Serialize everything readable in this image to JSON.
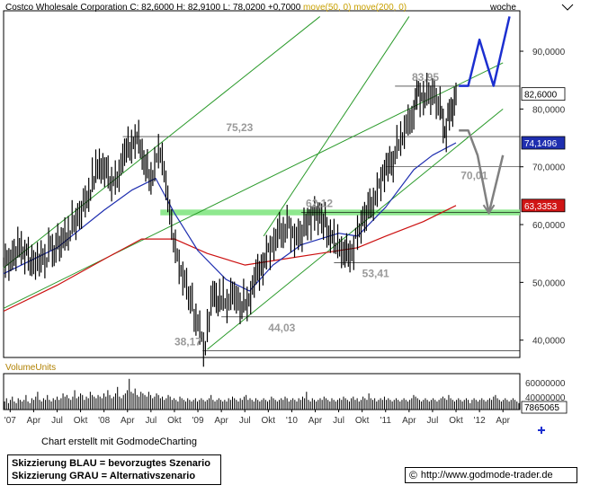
{
  "header": {
    "name": "Costco Wholesale Corporation",
    "ohlc": "C: 82,6000 H: 82,9100 L: 78,0200 +0,7000",
    "ma50": "move(50, 0)",
    "ma200": "move(200, 0)",
    "interval": "woche"
  },
  "volume_label": "VolumeUnits",
  "footer": {
    "credit": "Chart erstellt mit GodmodeCharting",
    "legend_blue": "Skizzierung BLAU = bevorzugtes Szenario",
    "legend_gray": "Skizzierung GRAU = Alternativszenario",
    "url_symbol": "©",
    "url": "http://www.godmode-trader.de"
  },
  "colors": {
    "price": "#000000",
    "ma50": "#1f2fb0",
    "ma200": "#cc1010",
    "channel": "#2a9a2a",
    "zone": "#8fe88f",
    "blue_scenario": "#1c2fd0",
    "gray_scenario": "#808080",
    "last_price_box": "#ffffff",
    "ma50_box": "#1f2fb0",
    "ma200_box": "#d01515"
  },
  "chart_data": {
    "type": "line",
    "title": "Costco Wholesale Corporation",
    "interval": "woche",
    "ylim": [
      37,
      97
    ],
    "y_ticks": [
      "90,0000",
      "80,0000",
      "70,0000",
      "60,0000",
      "50,0000",
      "40,0000"
    ],
    "y_tick_values": [
      90,
      80,
      70,
      60,
      50,
      40
    ],
    "x_ticks": [
      "'07",
      "Apr",
      "Jul",
      "Okt",
      "'08",
      "Apr",
      "Jul",
      "Okt",
      "'09",
      "Apr",
      "Jul",
      "Okt",
      "'10",
      "Apr",
      "Jul",
      "Okt",
      "'11",
      "Apr",
      "Jul",
      "Okt",
      "'12",
      "Apr"
    ],
    "x_tick_values": [
      2007.0,
      2007.25,
      2007.5,
      2007.75,
      2008.0,
      2008.25,
      2008.5,
      2008.75,
      2009.0,
      2009.25,
      2009.5,
      2009.75,
      2010.0,
      2010.25,
      2010.5,
      2010.75,
      2011.0,
      2011.25,
      2011.5,
      2011.75,
      2012.0,
      2012.25
    ],
    "xlim": [
      2006.93,
      2012.43
    ],
    "price_points": [
      [
        2006.93,
        53.5
      ],
      [
        2007.1,
        56
      ],
      [
        2007.25,
        53.5
      ],
      [
        2007.45,
        55.5
      ],
      [
        2007.62,
        58.5
      ],
      [
        2007.8,
        64
      ],
      [
        2007.95,
        70.5
      ],
      [
        2008.1,
        67.5
      ],
      [
        2008.2,
        71.5
      ],
      [
        2008.35,
        75
      ],
      [
        2008.5,
        68
      ],
      [
        2008.6,
        72
      ],
      [
        2008.72,
        60
      ],
      [
        2008.82,
        52
      ],
      [
        2008.92,
        47
      ],
      [
        2009.0,
        43
      ],
      [
        2009.08,
        38.6
      ],
      [
        2009.16,
        48
      ],
      [
        2009.25,
        46.5
      ],
      [
        2009.35,
        48
      ],
      [
        2009.45,
        45.5
      ],
      [
        2009.6,
        50
      ],
      [
        2009.75,
        56
      ],
      [
        2009.85,
        58.5
      ],
      [
        2009.95,
        60.5
      ],
      [
        2010.05,
        58
      ],
      [
        2010.15,
        60
      ],
      [
        2010.3,
        62
      ],
      [
        2010.45,
        58
      ],
      [
        2010.55,
        55
      ],
      [
        2010.62,
        54.5
      ],
      [
        2010.72,
        59
      ],
      [
        2010.85,
        63
      ],
      [
        2010.95,
        67
      ],
      [
        2011.1,
        72
      ],
      [
        2011.2,
        76
      ],
      [
        2011.3,
        79
      ],
      [
        2011.35,
        83.5
      ],
      [
        2011.42,
        81.5
      ],
      [
        2011.5,
        83
      ],
      [
        2011.58,
        81
      ],
      [
        2011.63,
        76
      ],
      [
        2011.68,
        79
      ],
      [
        2011.75,
        82.6
      ]
    ],
    "ma50_points": [
      [
        2006.93,
        51.5
      ],
      [
        2007.5,
        56
      ],
      [
        2008.0,
        62.5
      ],
      [
        2008.3,
        66
      ],
      [
        2008.55,
        68
      ],
      [
        2008.75,
        62
      ],
      [
        2009.0,
        55.5
      ],
      [
        2009.3,
        50.5
      ],
      [
        2009.55,
        48.5
      ],
      [
        2009.8,
        53
      ],
      [
        2010.1,
        56.5
      ],
      [
        2010.5,
        58.5
      ],
      [
        2010.7,
        58
      ],
      [
        2011.0,
        63
      ],
      [
        2011.3,
        69.5
      ],
      [
        2011.5,
        72
      ],
      [
        2011.75,
        74.15
      ]
    ],
    "ma200_points": [
      [
        2006.93,
        45
      ],
      [
        2007.5,
        49.5
      ],
      [
        2008.0,
        54
      ],
      [
        2008.4,
        57.5
      ],
      [
        2008.75,
        57.5
      ],
      [
        2009.1,
        55
      ],
      [
        2009.5,
        53
      ],
      [
        2009.9,
        54
      ],
      [
        2010.3,
        55
      ],
      [
        2010.7,
        56
      ],
      [
        2011.0,
        58
      ],
      [
        2011.4,
        60.5
      ],
      [
        2011.75,
        63.3
      ]
    ],
    "horizontal_lines": [
      {
        "label": "83,95",
        "value": 83.95,
        "x_start": 2011.1
      },
      {
        "label": "75,23",
        "value": 75.23,
        "x_start": 2008.2
      },
      {
        "label": "70,01",
        "value": 70.01,
        "x_start": 2011.0
      },
      {
        "label": "62,12",
        "value": 62.12,
        "x_start": 2010.1
      },
      {
        "label": "53,41",
        "value": 53.41,
        "x_start": 2010.45
      },
      {
        "label": "44,03",
        "value": 44.03,
        "x_start": 2009.25
      },
      {
        "label": "38,17",
        "value": 38.17,
        "x_start": 2009.05
      }
    ],
    "support_zone": {
      "from": 61.6,
      "to": 62.6,
      "x_start": 2008.6
    },
    "channel_lines": [
      {
        "from": [
          2006.93,
          52.5
        ],
        "to": [
          2010.3,
          96
        ]
      },
      {
        "from": [
          2006.93,
          45.5
        ],
        "to": [
          2012.25,
          88
        ]
      },
      {
        "from": [
          2009.1,
          38.4
        ],
        "to": [
          2012.25,
          80
        ]
      },
      {
        "from": [
          2009.7,
          58
        ],
        "to": [
          2011.25,
          96
        ]
      }
    ],
    "blue_scenario": [
      [
        2011.78,
        84
      ],
      [
        2011.88,
        84
      ],
      [
        2012.0,
        92
      ],
      [
        2012.15,
        84
      ],
      [
        2012.32,
        96
      ]
    ],
    "gray_scenario": [
      [
        2011.78,
        76.3
      ],
      [
        2011.88,
        76.3
      ],
      [
        2011.98,
        72
      ],
      [
        2012.1,
        62
      ],
      [
        2012.25,
        72
      ]
    ],
    "price_boxes": [
      {
        "label": "82,6000",
        "value": 82.6,
        "style": "last"
      },
      {
        "label": "74,1496",
        "value": 74.15,
        "style": "ma50"
      },
      {
        "label": "63,3353",
        "value": 63.3,
        "style": "ma200"
      }
    ],
    "volume": {
      "ticks": [
        "60000000",
        "40000000"
      ],
      "last_label": "7865065",
      "bars": [
        0.25,
        0.35,
        0.2,
        0.3,
        0.4,
        0.25,
        0.2,
        0.35,
        0.3,
        0.25,
        0.3,
        0.45,
        0.25,
        0.2,
        0.35,
        0.3,
        0.4,
        0.55,
        0.3,
        0.25,
        0.35,
        0.3,
        0.45,
        0.3,
        0.25,
        0.35,
        0.3,
        0.4,
        0.3,
        0.35,
        0.5,
        0.4,
        0.45,
        0.35,
        0.3,
        0.4,
        0.6,
        0.35,
        0.4,
        0.5,
        0.45,
        0.3,
        0.4,
        0.35,
        0.55,
        0.45,
        0.4,
        0.35,
        0.45,
        0.4,
        0.35,
        0.5,
        0.4,
        0.6,
        0.45,
        0.35,
        0.4,
        0.5,
        0.7,
        0.4,
        0.35,
        0.45,
        0.5,
        0.6,
        0.95,
        0.55,
        0.5,
        0.65,
        0.45,
        0.4,
        0.55,
        0.5,
        0.45,
        0.4,
        0.55,
        0.45,
        0.35,
        0.4,
        0.5,
        0.45,
        0.35,
        0.4,
        0.3,
        0.35,
        0.45,
        0.4,
        0.3,
        0.35,
        0.3,
        0.25,
        0.4,
        0.35,
        0.3,
        0.25,
        0.35,
        0.3,
        0.25,
        0.3,
        0.35,
        0.25,
        0.3,
        0.35,
        0.3,
        0.25,
        0.3,
        0.35,
        0.45,
        0.3,
        0.25,
        0.3,
        0.35,
        0.3,
        0.25,
        0.3,
        0.25,
        0.35,
        0.3,
        0.4,
        0.35,
        0.3,
        0.25,
        0.35,
        0.3,
        0.4,
        0.45,
        0.3,
        0.35,
        0.3,
        0.25,
        0.35,
        0.3,
        0.25,
        0.3,
        0.35,
        0.3,
        0.25,
        0.3,
        0.4,
        0.35,
        0.3,
        0.25,
        0.3,
        0.35,
        0.3,
        0.4,
        0.35,
        0.25,
        0.3,
        0.35,
        0.3,
        0.25,
        0.35,
        0.3,
        0.4,
        0.35,
        0.55,
        0.3,
        0.25,
        0.35,
        0.3,
        0.25,
        0.3,
        0.35,
        0.3,
        0.4,
        0.35,
        0.3,
        0.25,
        0.35,
        0.3,
        0.25,
        0.3,
        0.35,
        0.3,
        0.4,
        0.35,
        0.3,
        0.25,
        0.35,
        0.4,
        0.3,
        0.35,
        0.25,
        0.3,
        0.4,
        0.35,
        0.3,
        0.5,
        0.35,
        0.3,
        0.35,
        0.25,
        0.3,
        0.35,
        0.3,
        0.4,
        0.3,
        0.35,
        0.3,
        0.25,
        0.3,
        0.35,
        0.3,
        0.25,
        0.3,
        0.35,
        0.3,
        0.25,
        0.3,
        0.35,
        0.45,
        0.4,
        0.35,
        0.3,
        0.25,
        0.3,
        0.35,
        0.3,
        0.25,
        0.3,
        0.35,
        0.3,
        0.25,
        0.3,
        0.35,
        0.4,
        0.35,
        0.3,
        0.45,
        0.35,
        0.3,
        0.25,
        0.3,
        0.35,
        0.3,
        0.25,
        0.3,
        0.35,
        0.3,
        0.2,
        0.3,
        0.35,
        0.3,
        0.25,
        0.3,
        0.35,
        0.3,
        0.25,
        0.3,
        0.35,
        0.3,
        0.4,
        0.45,
        0.35,
        0.3,
        0.25,
        0.3,
        0.35,
        0.3,
        0.25,
        0.3,
        0.35,
        0.3,
        0.25,
        0.2
      ]
    }
  }
}
